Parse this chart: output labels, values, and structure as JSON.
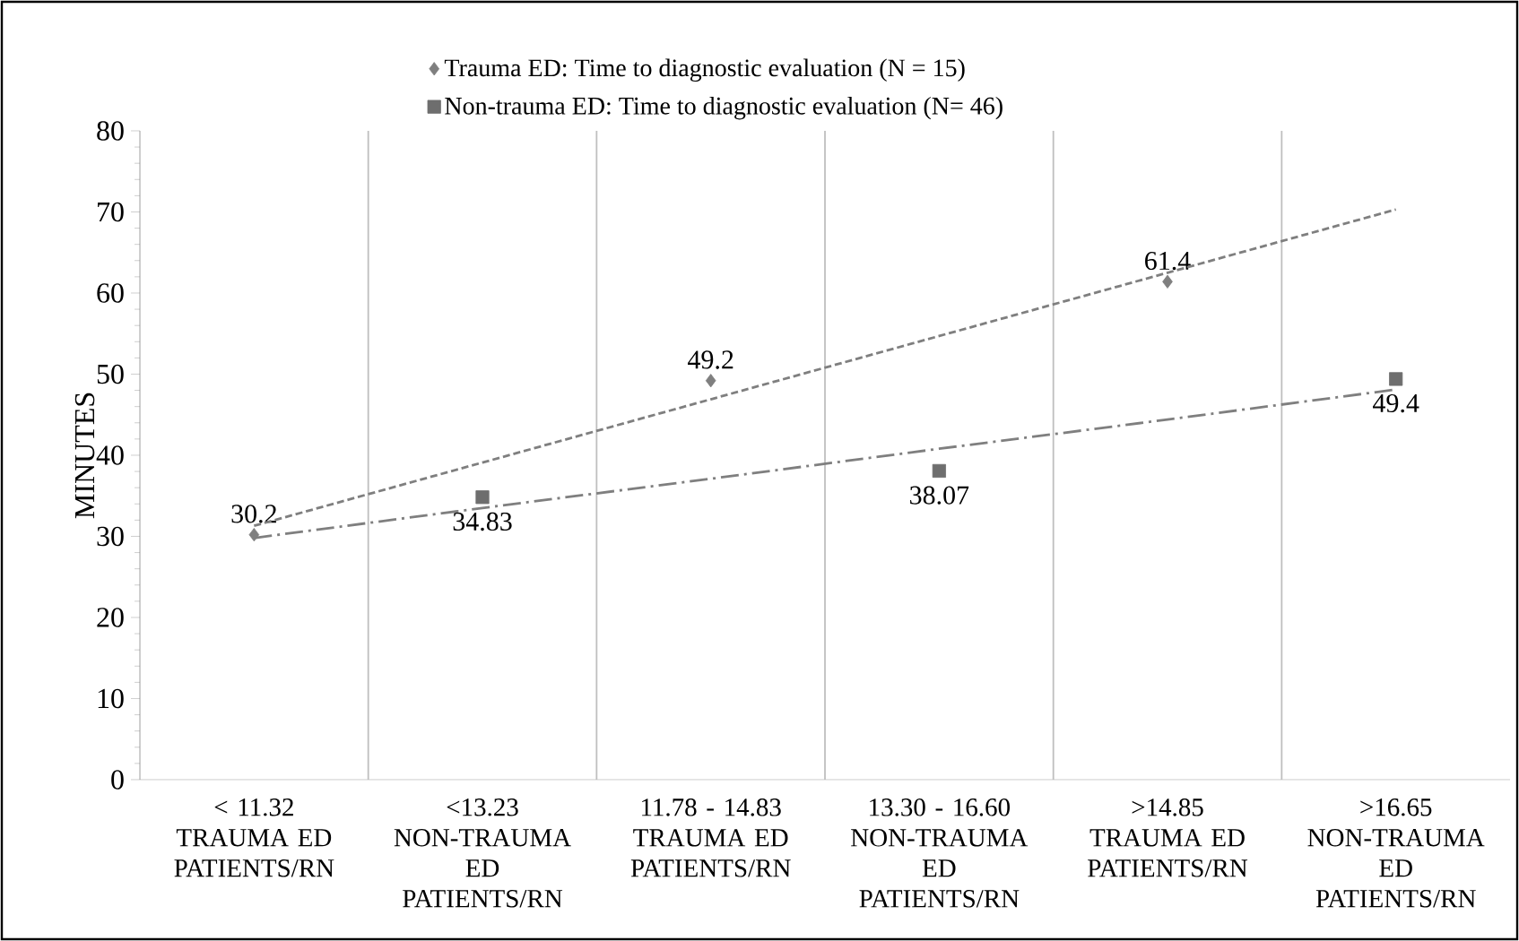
{
  "chart_data": {
    "type": "scatter",
    "ylabel": "MINUTES",
    "categories": [
      "< 11.32 TRAUMA ED PATIENTS/RN",
      "<13.23 NON-TRAUMA ED PATIENTS/RN",
      "11.78 - 14.83 TRAUMA ED PATIENTS/RN",
      "13.30 - 16.60 NON-TRAUMA ED PATIENTS/RN",
      ">14.85 TRAUMA ED PATIENTS/RN",
      ">16.65 NON-TRAUMA ED PATIENTS/RN"
    ],
    "series": [
      {
        "name": "Trauma ED:  Time to diagnostic evaluation (N = 15)",
        "color": "#7f7f7f",
        "marker": "diamond",
        "values": [
          30.2,
          null,
          49.2,
          null,
          61.4,
          null
        ],
        "value_labels": [
          "30.2",
          null,
          "49.2",
          null,
          "61.4",
          null
        ]
      },
      {
        "name": "Non-trauma ED: Time to diagnostic evaluation (N= 46)",
        "color": "#6e6e6e",
        "marker": "square",
        "values": [
          null,
          34.83,
          null,
          38.07,
          null,
          49.4
        ],
        "value_labels": [
          null,
          "34.83",
          null,
          "38.07",
          null,
          "49.4"
        ]
      },
      {
        "type": "line",
        "color": "#7f7f7f",
        "line_style": "dashed",
        "values": [
          31.3,
          39.1,
          46.9,
          54.7,
          62.5,
          70.3
        ]
      },
      {
        "type": "line",
        "color": "#7f7f7f",
        "line_style": "dashdot",
        "values": [
          29.8,
          33.5,
          37.1,
          40.8,
          44.4,
          48.1
        ]
      }
    ],
    "ylim": [
      0,
      80
    ],
    "yticks": [
      0,
      10,
      20,
      30,
      40,
      50,
      60,
      70,
      80
    ],
    "grid": "x",
    "legend": "top"
  }
}
